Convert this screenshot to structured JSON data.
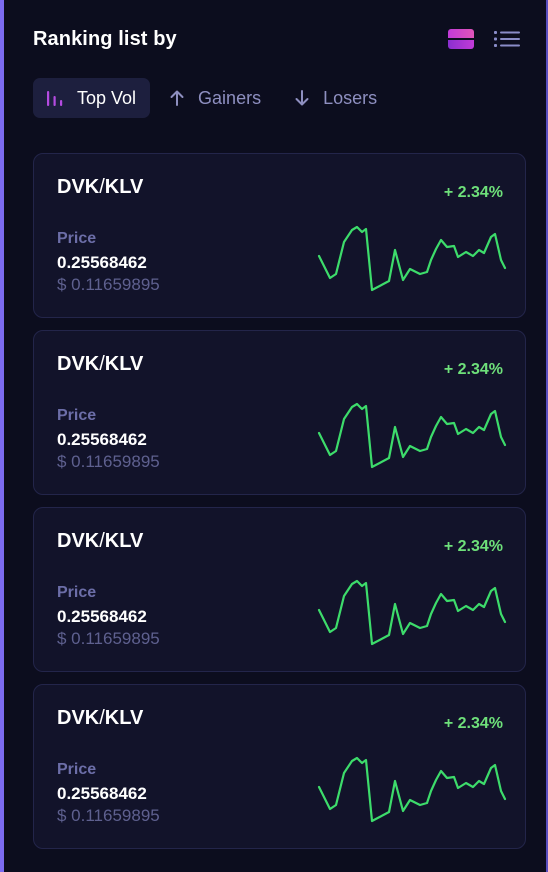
{
  "header": {
    "title": "Ranking list by"
  },
  "icons": {
    "grid_view": "grid-view-icon",
    "list_view": "list-view-icon"
  },
  "colors": {
    "accent": "#c23bd8",
    "positive": "#6ee07a",
    "line": "#3ddc6b",
    "border": "#7c6bf0"
  },
  "tabs": [
    {
      "label": "Top Vol",
      "icon": "bar-chart-icon",
      "active": true
    },
    {
      "label": "Gainers",
      "icon": "arrow-up-icon",
      "active": false
    },
    {
      "label": "Losers",
      "icon": "arrow-down-icon",
      "active": false
    }
  ],
  "cards": [
    {
      "base": "DVK",
      "sep": "/",
      "quote": "KLV",
      "change": "+ 2.34%",
      "price_label": "Price",
      "price": "0.25568462",
      "usd": "$ 0.11659895"
    },
    {
      "base": "DVK",
      "sep": "/",
      "quote": "KLV",
      "change": "+ 2.34%",
      "price_label": "Price",
      "price": "0.25568462",
      "usd": "$ 0.11659895"
    },
    {
      "base": "DVK",
      "sep": "/",
      "quote": "KLV",
      "change": "+ 2.34%",
      "price_label": "Price",
      "price": "0.25568462",
      "usd": "$ 0.11659895"
    },
    {
      "base": "DVK",
      "sep": "/",
      "quote": "KLV",
      "change": "+ 2.34%",
      "price_label": "Price",
      "price": "0.25568462",
      "usd": "$ 0.11659895"
    }
  ]
}
